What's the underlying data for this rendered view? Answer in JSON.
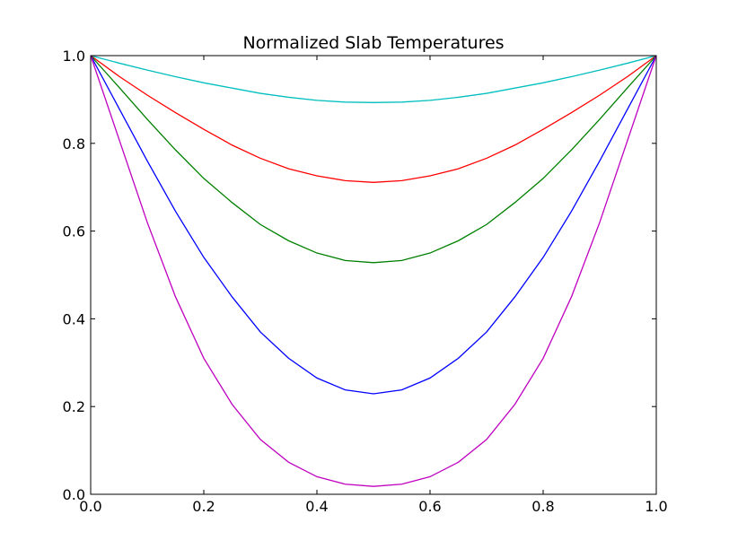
{
  "chart_data": {
    "type": "line",
    "title": "Normalized Slab Temperatures",
    "xlabel": "",
    "ylabel": "",
    "xlim": [
      0.0,
      1.0
    ],
    "ylim": [
      0.0,
      1.0
    ],
    "x_ticks": [
      "0.0",
      "0.2",
      "0.4",
      "0.6",
      "0.8",
      "1.0"
    ],
    "y_ticks": [
      "0.0",
      "0.2",
      "0.4",
      "0.6",
      "0.8",
      "1.0"
    ],
    "grid": false,
    "x": [
      0.0,
      0.05,
      0.1,
      0.15,
      0.2,
      0.25,
      0.3,
      0.35,
      0.4,
      0.45,
      0.5,
      0.55,
      0.6,
      0.65,
      0.7,
      0.75,
      0.8,
      0.85,
      0.9,
      0.95,
      1.0
    ],
    "series": [
      {
        "color": "#00bfbf",
        "values": [
          1.0,
          0.983,
          0.967,
          0.952,
          0.938,
          0.926,
          0.914,
          0.905,
          0.898,
          0.894,
          0.893,
          0.894,
          0.898,
          0.905,
          0.914,
          0.926,
          0.938,
          0.952,
          0.967,
          0.983,
          1.0
        ]
      },
      {
        "color": "#ff0000",
        "values": [
          1.0,
          0.953,
          0.91,
          0.87,
          0.832,
          0.796,
          0.766,
          0.742,
          0.726,
          0.715,
          0.711,
          0.715,
          0.726,
          0.742,
          0.766,
          0.796,
          0.832,
          0.87,
          0.91,
          0.953,
          1.0
        ]
      },
      {
        "color": "#008000",
        "values": [
          1.0,
          0.928,
          0.855,
          0.785,
          0.72,
          0.665,
          0.615,
          0.578,
          0.55,
          0.533,
          0.528,
          0.533,
          0.55,
          0.578,
          0.615,
          0.665,
          0.72,
          0.785,
          0.855,
          0.928,
          1.0
        ]
      },
      {
        "color": "#0000ff",
        "values": [
          1.0,
          0.88,
          0.76,
          0.645,
          0.54,
          0.45,
          0.37,
          0.31,
          0.265,
          0.238,
          0.229,
          0.238,
          0.265,
          0.31,
          0.37,
          0.45,
          0.54,
          0.645,
          0.76,
          0.88,
          1.0
        ]
      },
      {
        "color": "#bf00bf",
        "values": [
          1.0,
          0.81,
          0.62,
          0.45,
          0.31,
          0.205,
          0.125,
          0.073,
          0.04,
          0.023,
          0.018,
          0.023,
          0.04,
          0.073,
          0.125,
          0.205,
          0.31,
          0.45,
          0.62,
          0.81,
          1.0
        ]
      }
    ]
  }
}
